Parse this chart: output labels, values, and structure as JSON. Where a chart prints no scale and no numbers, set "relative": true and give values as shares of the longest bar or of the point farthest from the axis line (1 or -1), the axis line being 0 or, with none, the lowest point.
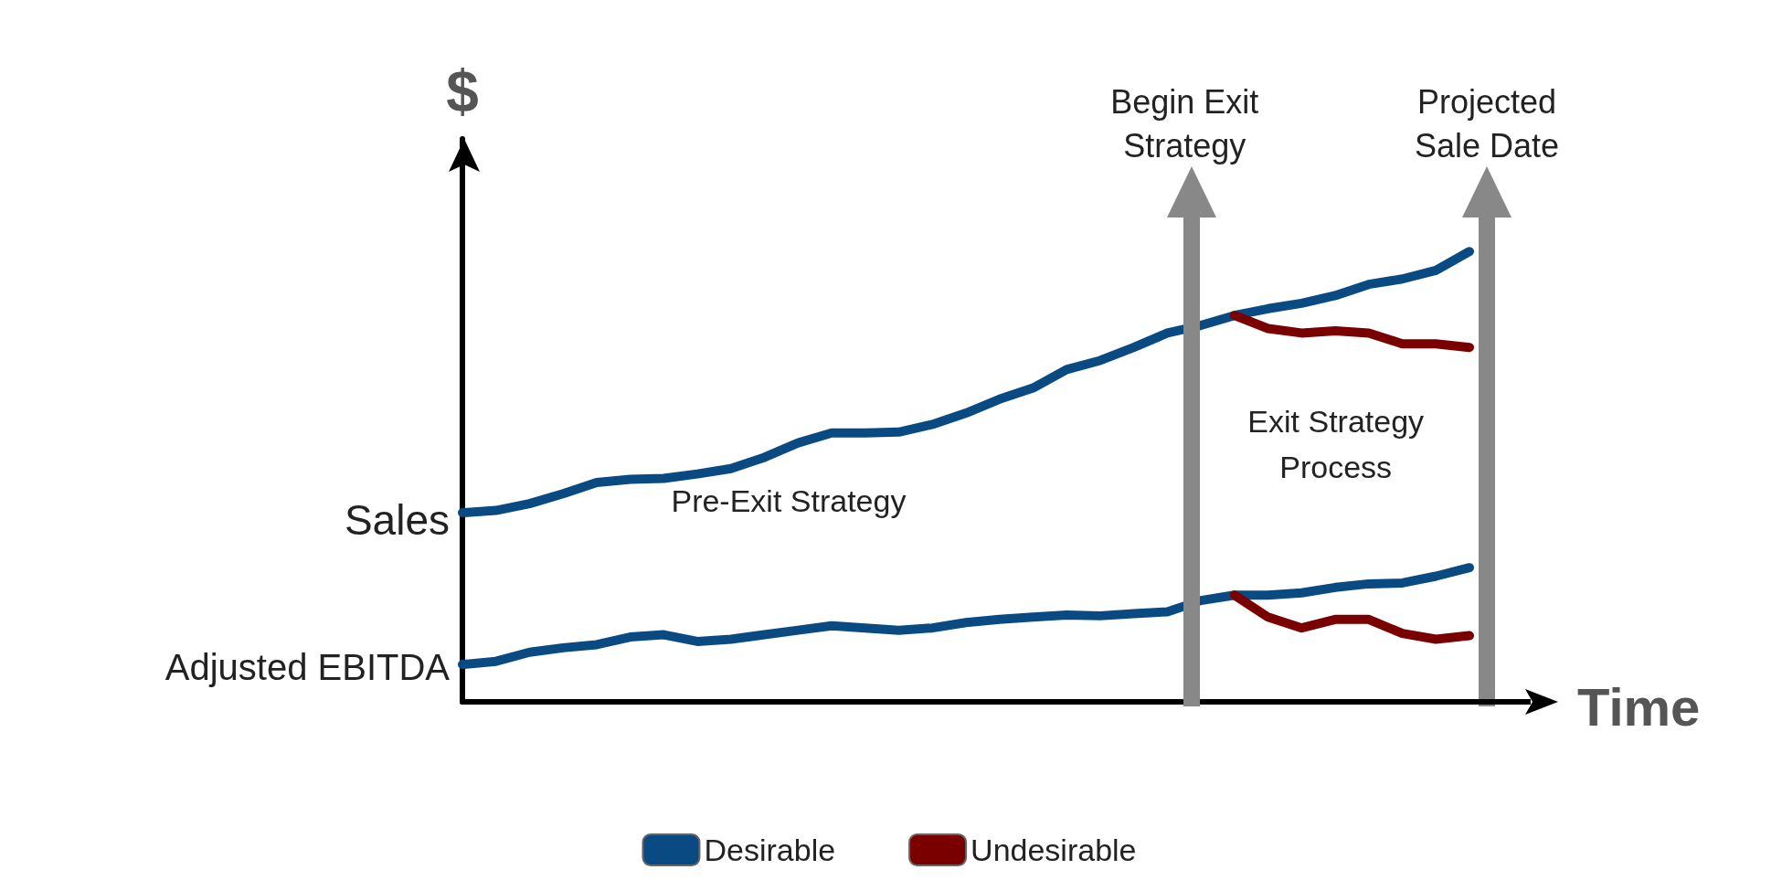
{
  "chart_data": {
    "type": "line",
    "relative": true,
    "ylabel": "$",
    "xlabel": "Time",
    "categories": [
      null,
      null,
      null,
      null,
      null,
      null,
      null,
      null,
      null,
      null,
      null,
      null,
      null,
      null,
      null,
      null,
      null,
      null,
      null,
      null,
      null,
      null,
      null,
      null,
      null,
      null,
      null,
      null,
      null,
      null,
      null
    ],
    "series": [
      {
        "name": "Desirable",
        "color": "#0a4a82",
        "values": [
          0.42,
          0.425,
          0.44,
          0.462,
          0.487,
          0.494,
          0.496,
          0.506,
          0.518,
          0.543,
          0.575,
          0.597,
          0.597,
          0.599,
          0.616,
          0.641,
          0.672,
          0.697,
          0.738,
          0.758,
          0.787,
          0.819,
          0.836,
          0.858,
          0.873,
          0.885,
          0.902,
          0.927,
          0.939,
          0.958,
          1.0
        ]
      },
      {
        "name": "Undesirable",
        "color": "#7a0000",
        "values": [
          null,
          null,
          null,
          null,
          null,
          null,
          null,
          null,
          null,
          null,
          null,
          null,
          null,
          null,
          null,
          null,
          null,
          null,
          null,
          null,
          null,
          null,
          null,
          0.858,
          0.829,
          0.819,
          0.824,
          0.819,
          0.795,
          0.795,
          0.787
        ]
      },
      {
        "color": "#0a4a82",
        "values": [
          0.083,
          0.09,
          0.11,
          0.12,
          0.127,
          0.144,
          0.149,
          0.134,
          0.139,
          0.149,
          0.159,
          0.169,
          0.164,
          0.159,
          0.164,
          0.176,
          0.183,
          0.188,
          0.193,
          0.191,
          0.196,
          0.2,
          0.225,
          0.237,
          0.237,
          0.242,
          0.254,
          0.262,
          0.264,
          0.279,
          0.298
        ]
      },
      {
        "color": "#7a0000",
        "values": [
          null,
          null,
          null,
          null,
          null,
          null,
          null,
          null,
          null,
          null,
          null,
          null,
          null,
          null,
          null,
          null,
          null,
          null,
          null,
          null,
          null,
          null,
          null,
          0.237,
          0.188,
          0.164,
          0.183,
          0.183,
          0.152,
          0.139,
          0.147
        ]
      }
    ],
    "annotations": [
      "Begin Exit Strategy",
      "Projected Sale Date",
      "Sales",
      "Adjusted EBITDA",
      "Pre-Exit Strategy",
      "Exit Strategy Process"
    ],
    "legend": "bottom",
    "line_style": "solid",
    "grid": false
  }
}
